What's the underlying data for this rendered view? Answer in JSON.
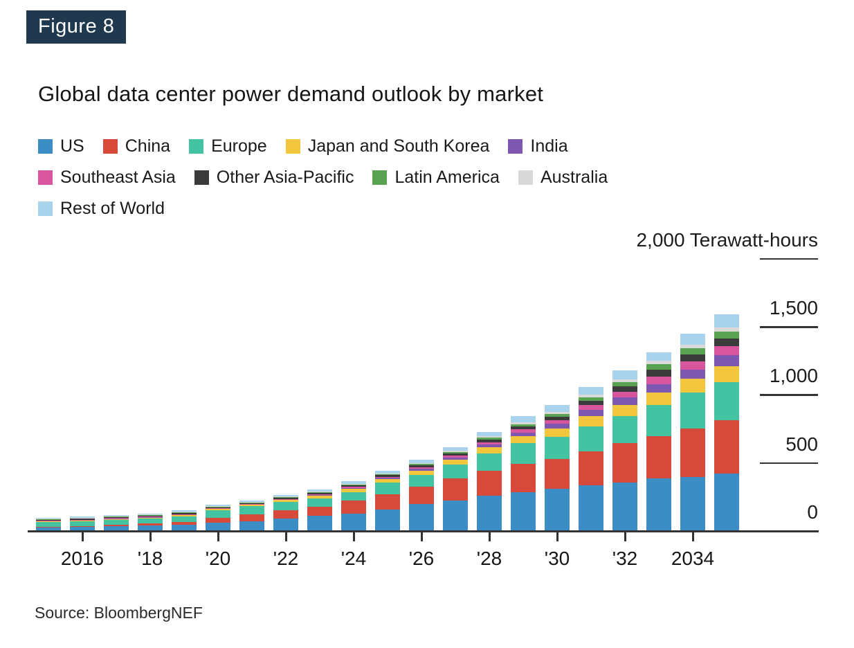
{
  "figure_label": "Figure 8",
  "title": "Global data center power demand outlook by market",
  "source": "Source: BloombergNEF",
  "colors": {
    "badge_navy": "#20394f",
    "axis": "#333333",
    "text": "#1a1a1a",
    "background": "#ffffff"
  },
  "legend": {
    "rows": [
      [
        "US",
        "China",
        "Europe",
        "Japan and South Korea",
        "India"
      ],
      [
        "Southeast Asia",
        "Other Asia-Pacific",
        "Latin America",
        "Australia"
      ],
      [
        "Rest of World"
      ]
    ]
  },
  "y_axis": {
    "unit_label": "2,000 Terawatt-hours",
    "ticks": [
      {
        "value": 2000,
        "label": "2,000 Terawatt-hours",
        "line": true
      },
      {
        "value": 1500,
        "label": "1,500",
        "line": true
      },
      {
        "value": 1000,
        "label": "1,000",
        "line": true
      },
      {
        "value": 500,
        "label": "500",
        "line": true
      },
      {
        "value": 0,
        "label": "0",
        "line": false
      }
    ]
  },
  "x_axis": {
    "ticks": [
      {
        "year": 2016,
        "label": "2016"
      },
      {
        "year": 2018,
        "label": "'18"
      },
      {
        "year": 2020,
        "label": "'20"
      },
      {
        "year": 2022,
        "label": "'22"
      },
      {
        "year": 2024,
        "label": "'24"
      },
      {
        "year": 2026,
        "label": "'26"
      },
      {
        "year": 2028,
        "label": "'28"
      },
      {
        "year": 2030,
        "label": "'30"
      },
      {
        "year": 2032,
        "label": "'32"
      },
      {
        "year": 2034,
        "label": "2034"
      }
    ]
  },
  "chart_data": {
    "type": "bar",
    "stacked": true,
    "title": "Global data center power demand outlook by market",
    "ylabel": "Terawatt-hours",
    "ylim": [
      0,
      2000
    ],
    "y_ticks": [
      0,
      500,
      1000,
      1500,
      2000
    ],
    "grid": false,
    "legend_position": "top-left",
    "x": [
      2015,
      2016,
      2017,
      2018,
      2019,
      2020,
      2021,
      2022,
      2023,
      2024,
      2025,
      2026,
      2027,
      2028,
      2029,
      2030,
      2031,
      2032,
      2033,
      2034,
      2035
    ],
    "series": [
      {
        "name": "US",
        "color": "#3c8dc5",
        "values": [
          25,
          28,
          36,
          42,
          48,
          61,
          73,
          90,
          110,
          128,
          160,
          197,
          223,
          258,
          283,
          312,
          338,
          358,
          385,
          396,
          422
        ]
      },
      {
        "name": "China",
        "color": "#d74a3b",
        "values": [
          8,
          9,
          11,
          13,
          17,
          37,
          51,
          64,
          69,
          96,
          110,
          128,
          165,
          184,
          211,
          216,
          245,
          287,
          312,
          358,
          393
        ]
      },
      {
        "name": "Europe",
        "color": "#43c3a2",
        "values": [
          32,
          35,
          35,
          36,
          42,
          56,
          59,
          62,
          62,
          62,
          85,
          88,
          100,
          130,
          150,
          164,
          186,
          199,
          231,
          263,
          277
        ]
      },
      {
        "name": "Japan and South Korea",
        "color": "#f2c63d",
        "values": [
          8,
          8,
          9,
          10,
          11,
          10,
          10,
          12,
          16,
          22,
          24,
          30,
          34,
          42,
          52,
          62,
          76,
          84,
          90,
          100,
          118
        ]
      },
      {
        "name": "India",
        "color": "#7e57b0",
        "values": [
          1,
          1,
          1,
          1,
          2,
          2,
          3,
          4,
          6,
          9,
          11,
          14,
          18,
          22,
          28,
          34,
          44,
          52,
          62,
          69,
          82
        ]
      },
      {
        "name": "Southeast Asia",
        "color": "#d8569d",
        "values": [
          2,
          2,
          3,
          3,
          3,
          3,
          3,
          4,
          5,
          8,
          9,
          12,
          14,
          17,
          22,
          27,
          36,
          42,
          54,
          59,
          64
        ]
      },
      {
        "name": "Other Asia-Pacific",
        "color": "#3b3b3b",
        "values": [
          10,
          10,
          10,
          10,
          11,
          8,
          9,
          10,
          11,
          11,
          12,
          14,
          16,
          19,
          22,
          26,
          33,
          40,
          51,
          54,
          60
        ]
      },
      {
        "name": "Latin America",
        "color": "#58a251",
        "values": [
          2,
          2,
          2,
          3,
          3,
          3,
          3,
          4,
          5,
          6,
          7,
          9,
          11,
          13,
          16,
          20,
          26,
          30,
          39,
          46,
          50
        ]
      },
      {
        "name": "Australia",
        "color": "#d9d9d9",
        "values": [
          3,
          3,
          3,
          3,
          4,
          3,
          3,
          4,
          5,
          5,
          6,
          8,
          9,
          10,
          13,
          15,
          19,
          22,
          25,
          25,
          30
        ]
      },
      {
        "name": "Rest of World",
        "color": "#a9d2ec",
        "values": [
          7,
          8,
          8,
          8,
          12,
          8,
          11,
          13,
          17,
          19,
          20,
          26,
          26,
          34,
          47,
          52,
          57,
          66,
          64,
          81,
          94
        ]
      }
    ]
  }
}
